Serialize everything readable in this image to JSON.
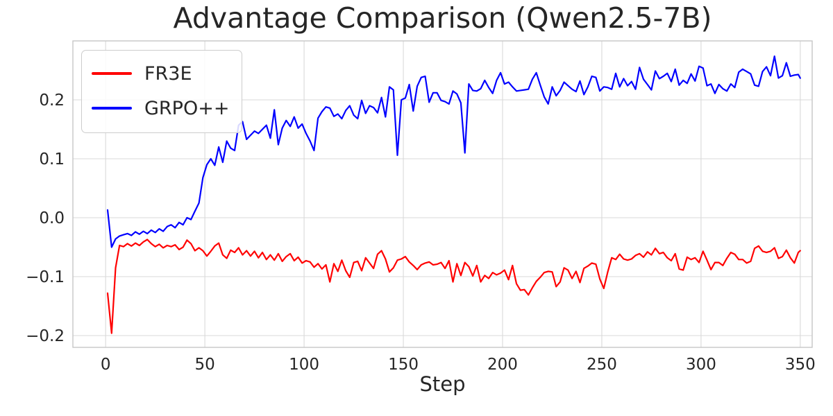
{
  "chart_data": {
    "type": "line",
    "title": "Advantage Comparison (Qwen2.5-7B)",
    "xlabel": "Step",
    "ylabel": "",
    "xlim": [
      -16.5,
      356
    ],
    "ylim": [
      -0.22,
      0.3
    ],
    "grid": true,
    "background": "#ffffff",
    "x_ticks": {
      "values": [
        0,
        50,
        100,
        150,
        200,
        250,
        300,
        350
      ],
      "labels": [
        "0",
        "50",
        "100",
        "150",
        "200",
        "250",
        "300",
        "350"
      ]
    },
    "y_ticks": {
      "values": [
        -0.2,
        -0.1,
        0.0,
        0.1,
        0.2
      ],
      "labels": [
        "−0.2",
        "−0.1",
        "0.0",
        "0.1",
        "0.2"
      ]
    },
    "legend": {
      "position": "upper left",
      "entries": [
        {
          "label": "FR3E",
          "color": "#ff0000"
        },
        {
          "label": "GRPO++",
          "color": "#0000ff"
        }
      ]
    },
    "x": [
      1,
      3,
      5,
      7,
      9,
      11,
      13,
      15,
      17,
      19,
      21,
      23,
      25,
      27,
      29,
      31,
      33,
      35,
      37,
      39,
      41,
      43,
      45,
      47,
      49,
      51,
      53,
      55,
      57,
      59,
      61,
      63,
      65,
      67,
      69,
      71,
      73,
      75,
      77,
      79,
      81,
      83,
      85,
      87,
      89,
      91,
      93,
      95,
      97,
      99,
      101,
      103,
      105,
      107,
      109,
      111,
      113,
      115,
      117,
      119,
      121,
      123,
      125,
      127,
      129,
      131,
      133,
      135,
      137,
      139,
      141,
      143,
      145,
      147,
      149,
      151,
      153,
      155,
      157,
      159,
      161,
      163,
      165,
      167,
      169,
      171,
      173,
      175,
      177,
      179,
      181,
      183,
      185,
      187,
      189,
      191,
      193,
      195,
      197,
      199,
      201,
      203,
      205,
      207,
      209,
      211,
      213,
      215,
      217,
      219,
      221,
      223,
      225,
      227,
      229,
      231,
      233,
      235,
      237,
      239,
      241,
      243,
      245,
      247,
      249,
      251,
      253,
      255,
      257,
      259,
      261,
      263,
      265,
      267,
      269,
      271,
      273,
      275,
      277,
      279,
      281,
      283,
      285,
      287,
      289,
      291,
      293,
      295,
      297,
      299,
      301,
      303,
      305,
      307,
      309,
      311,
      313,
      315,
      317,
      319,
      321,
      323,
      325,
      327,
      329,
      331,
      333,
      335,
      337,
      339,
      341,
      343,
      345,
      347,
      349,
      350
    ],
    "series": [
      {
        "name": "FR3E",
        "color": "#ff0000",
        "values": [
          -0.128,
          -0.196,
          -0.085,
          -0.047,
          -0.049,
          -0.044,
          -0.048,
          -0.043,
          -0.047,
          -0.041,
          -0.037,
          -0.044,
          -0.049,
          -0.045,
          -0.051,
          -0.047,
          -0.049,
          -0.046,
          -0.054,
          -0.05,
          -0.038,
          -0.044,
          -0.056,
          -0.051,
          -0.056,
          -0.065,
          -0.057,
          -0.048,
          -0.043,
          -0.063,
          -0.069,
          -0.055,
          -0.059,
          -0.051,
          -0.063,
          -0.056,
          -0.065,
          -0.057,
          -0.068,
          -0.059,
          -0.071,
          -0.063,
          -0.072,
          -0.061,
          -0.074,
          -0.066,
          -0.061,
          -0.073,
          -0.067,
          -0.077,
          -0.073,
          -0.075,
          -0.084,
          -0.078,
          -0.087,
          -0.08,
          -0.109,
          -0.078,
          -0.091,
          -0.072,
          -0.09,
          -0.101,
          -0.076,
          -0.074,
          -0.09,
          -0.068,
          -0.077,
          -0.086,
          -0.062,
          -0.056,
          -0.07,
          -0.092,
          -0.085,
          -0.072,
          -0.07,
          -0.066,
          -0.075,
          -0.081,
          -0.088,
          -0.08,
          -0.077,
          -0.075,
          -0.08,
          -0.079,
          -0.076,
          -0.086,
          -0.073,
          -0.109,
          -0.078,
          -0.098,
          -0.076,
          -0.083,
          -0.099,
          -0.081,
          -0.109,
          -0.098,
          -0.103,
          -0.093,
          -0.097,
          -0.094,
          -0.089,
          -0.105,
          -0.081,
          -0.112,
          -0.123,
          -0.122,
          -0.131,
          -0.119,
          -0.108,
          -0.101,
          -0.093,
          -0.091,
          -0.092,
          -0.117,
          -0.109,
          -0.085,
          -0.089,
          -0.103,
          -0.091,
          -0.11,
          -0.086,
          -0.082,
          -0.077,
          -0.079,
          -0.104,
          -0.12,
          -0.092,
          -0.068,
          -0.071,
          -0.062,
          -0.07,
          -0.072,
          -0.07,
          -0.064,
          -0.061,
          -0.067,
          -0.058,
          -0.063,
          -0.052,
          -0.061,
          -0.059,
          -0.068,
          -0.073,
          -0.061,
          -0.087,
          -0.089,
          -0.067,
          -0.071,
          -0.068,
          -0.076,
          -0.057,
          -0.072,
          -0.088,
          -0.076,
          -0.076,
          -0.081,
          -0.069,
          -0.059,
          -0.062,
          -0.071,
          -0.071,
          -0.077,
          -0.074,
          -0.052,
          -0.048,
          -0.057,
          -0.059,
          -0.057,
          -0.051,
          -0.069,
          -0.066,
          -0.055,
          -0.068,
          -0.077,
          -0.059,
          -0.056
        ]
      },
      {
        "name": "GRPO++",
        "color": "#0000ff",
        "values": [
          0.013,
          -0.05,
          -0.036,
          -0.031,
          -0.029,
          -0.027,
          -0.03,
          -0.024,
          -0.028,
          -0.023,
          -0.027,
          -0.021,
          -0.025,
          -0.019,
          -0.023,
          -0.015,
          -0.012,
          -0.017,
          -0.008,
          -0.012,
          0.0,
          -0.003,
          0.011,
          0.025,
          0.068,
          0.09,
          0.1,
          0.089,
          0.12,
          0.094,
          0.13,
          0.118,
          0.114,
          0.157,
          0.163,
          0.133,
          0.14,
          0.147,
          0.143,
          0.15,
          0.157,
          0.135,
          0.183,
          0.124,
          0.152,
          0.165,
          0.155,
          0.171,
          0.152,
          0.159,
          0.143,
          0.13,
          0.114,
          0.169,
          0.18,
          0.188,
          0.186,
          0.172,
          0.176,
          0.168,
          0.182,
          0.19,
          0.174,
          0.168,
          0.199,
          0.177,
          0.19,
          0.187,
          0.178,
          0.204,
          0.171,
          0.222,
          0.217,
          0.106,
          0.2,
          0.203,
          0.226,
          0.181,
          0.223,
          0.238,
          0.24,
          0.196,
          0.212,
          0.212,
          0.199,
          0.197,
          0.193,
          0.215,
          0.21,
          0.195,
          0.11,
          0.227,
          0.216,
          0.215,
          0.219,
          0.233,
          0.221,
          0.211,
          0.233,
          0.246,
          0.227,
          0.23,
          0.222,
          0.215,
          0.216,
          0.217,
          0.218,
          0.235,
          0.246,
          0.225,
          0.205,
          0.193,
          0.222,
          0.207,
          0.216,
          0.23,
          0.224,
          0.218,
          0.214,
          0.232,
          0.209,
          0.222,
          0.24,
          0.238,
          0.215,
          0.222,
          0.221,
          0.218,
          0.245,
          0.222,
          0.236,
          0.224,
          0.231,
          0.218,
          0.255,
          0.235,
          0.226,
          0.217,
          0.249,
          0.236,
          0.24,
          0.245,
          0.231,
          0.252,
          0.225,
          0.233,
          0.228,
          0.244,
          0.232,
          0.257,
          0.254,
          0.224,
          0.227,
          0.211,
          0.226,
          0.219,
          0.215,
          0.227,
          0.221,
          0.247,
          0.252,
          0.248,
          0.244,
          0.225,
          0.223,
          0.248,
          0.256,
          0.241,
          0.274,
          0.237,
          0.241,
          0.263,
          0.24,
          0.242,
          0.243,
          0.237
        ]
      }
    ]
  },
  "style_colors": {
    "grid": "#d9d9d9",
    "spine": "#c6c6c6",
    "text": "#262626",
    "tick_text": "#262626"
  }
}
